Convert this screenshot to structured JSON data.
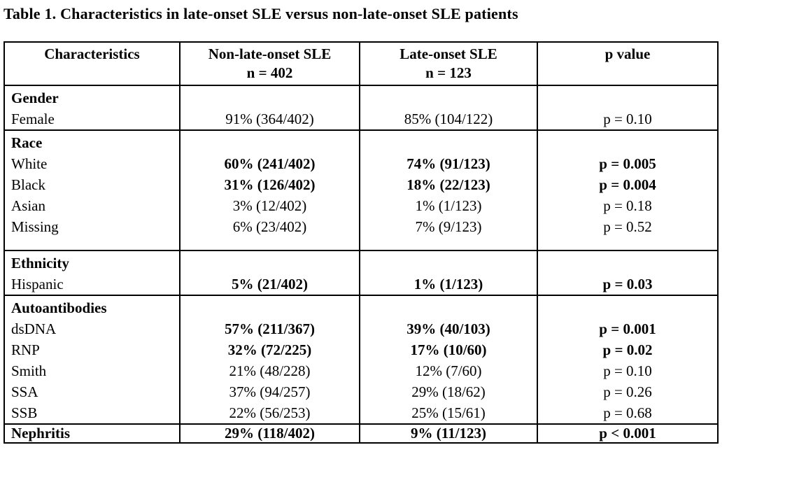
{
  "title": "Table 1. Characteristics in late-onset SLE versus non-late-onset SLE patients",
  "table": {
    "columns": [
      {
        "line1": "Characteristics",
        "line2": ""
      },
      {
        "line1": "Non-late-onset SLE",
        "line2": "n = 402"
      },
      {
        "line1": "Late-onset SLE",
        "line2": "n = 123"
      },
      {
        "line1": "p value",
        "line2": ""
      }
    ],
    "sections": [
      {
        "id": "gender",
        "lines": [
          {
            "cells": [
              "Gender",
              "",
              "",
              ""
            ],
            "bold": [
              true,
              false,
              false,
              false
            ]
          },
          {
            "cells": [
              "Female",
              "91% (364/402)",
              "85% (104/122)",
              "p = 0.10"
            ],
            "bold": [
              false,
              false,
              false,
              false
            ]
          }
        ]
      },
      {
        "id": "race",
        "spacer_after": true,
        "lines": [
          {
            "cells": [
              "Race",
              "",
              "",
              ""
            ],
            "bold": [
              true,
              false,
              false,
              false
            ]
          },
          {
            "cells": [
              "White",
              "60% (241/402)",
              "74% (91/123)",
              "p = 0.005"
            ],
            "bold": [
              false,
              true,
              true,
              true
            ]
          },
          {
            "cells": [
              "Black",
              "31% (126/402)",
              "18% (22/123)",
              "p = 0.004"
            ],
            "bold": [
              false,
              true,
              true,
              true
            ]
          },
          {
            "cells": [
              "Asian",
              "3% (12/402)",
              "1% (1/123)",
              "p = 0.18"
            ],
            "bold": [
              false,
              false,
              false,
              false
            ]
          },
          {
            "cells": [
              "Missing",
              "6% (23/402)",
              "7% (9/123)",
              "p = 0.52"
            ],
            "bold": [
              false,
              false,
              false,
              false
            ]
          }
        ]
      },
      {
        "id": "ethnicity",
        "lines": [
          {
            "cells": [
              "Ethnicity",
              "",
              "",
              ""
            ],
            "bold": [
              true,
              false,
              false,
              false
            ]
          },
          {
            "cells": [
              "Hispanic",
              "5% (21/402)",
              "1% (1/123)",
              "p = 0.03"
            ],
            "bold": [
              false,
              true,
              true,
              true
            ]
          }
        ]
      },
      {
        "id": "autoantibodies",
        "lines": [
          {
            "cells": [
              "Autoantibodies",
              "",
              "",
              ""
            ],
            "bold": [
              true,
              false,
              false,
              false
            ]
          },
          {
            "cells": [
              "dsDNA",
              "57% (211/367)",
              "39% (40/103)",
              "p = 0.001"
            ],
            "bold": [
              false,
              true,
              true,
              true
            ]
          },
          {
            "cells": [
              "RNP",
              "32% (72/225)",
              "17% (10/60)",
              "p = 0.02"
            ],
            "bold": [
              false,
              true,
              true,
              true
            ]
          },
          {
            "cells": [
              "Smith",
              "21% (48/228)",
              "12% (7/60)",
              "p = 0.10"
            ],
            "bold": [
              false,
              false,
              false,
              false
            ]
          },
          {
            "cells": [
              "SSA",
              "37% (94/257)",
              "29% (18/62)",
              "p = 0.26"
            ],
            "bold": [
              false,
              false,
              false,
              false
            ]
          },
          {
            "cells": [
              "SSB",
              "22% (56/253)",
              "25% (15/61)",
              "p = 0.68"
            ],
            "bold": [
              false,
              false,
              false,
              false
            ]
          }
        ]
      },
      {
        "id": "nephritis",
        "compact": true,
        "lines": [
          {
            "cells": [
              "Nephritis",
              "29% (118/402)",
              "9% (11/123)",
              "p < 0.001"
            ],
            "bold": [
              true,
              true,
              true,
              true
            ]
          }
        ]
      }
    ]
  }
}
